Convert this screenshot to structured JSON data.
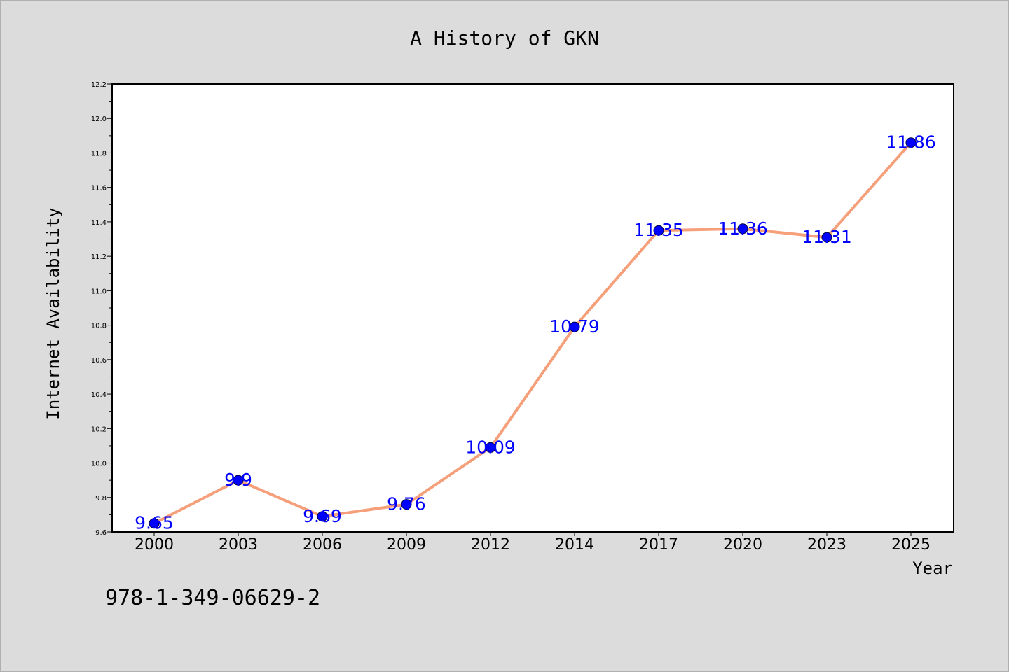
{
  "chart_data": {
    "type": "line",
    "title": "A History of GKN",
    "xlabel": "Year",
    "ylabel": "Internet Availability",
    "categories": [
      "2000",
      "2003",
      "2006",
      "2009",
      "2012",
      "2014",
      "2017",
      "2020",
      "2023",
      "2025"
    ],
    "series": [
      {
        "values": [
          9.65,
          9.9,
          9.69,
          9.76,
          10.09,
          10.79,
          11.35,
          11.36,
          11.31,
          11.86
        ]
      }
    ],
    "data_labels": [
      "9.65",
      "9.9",
      "9.69",
      "9.76",
      "10.09",
      "10.79",
      "11.35",
      "11.36",
      "11.31",
      "11.86"
    ],
    "ylim": [
      9.6,
      12.2
    ],
    "yticks": [
      "9.6",
      "9.8",
      "10.0",
      "10.2",
      "10.4",
      "10.6",
      "10.8",
      "11.0",
      "11.2",
      "11.4",
      "11.6",
      "11.8",
      "12.0",
      "12.2"
    ],
    "grid": false,
    "legend": "none",
    "line_color": "#f5a07a",
    "marker_color": "#0000ff",
    "label_color": "#0000ff"
  },
  "annotation": "978-1-349-06629-2"
}
